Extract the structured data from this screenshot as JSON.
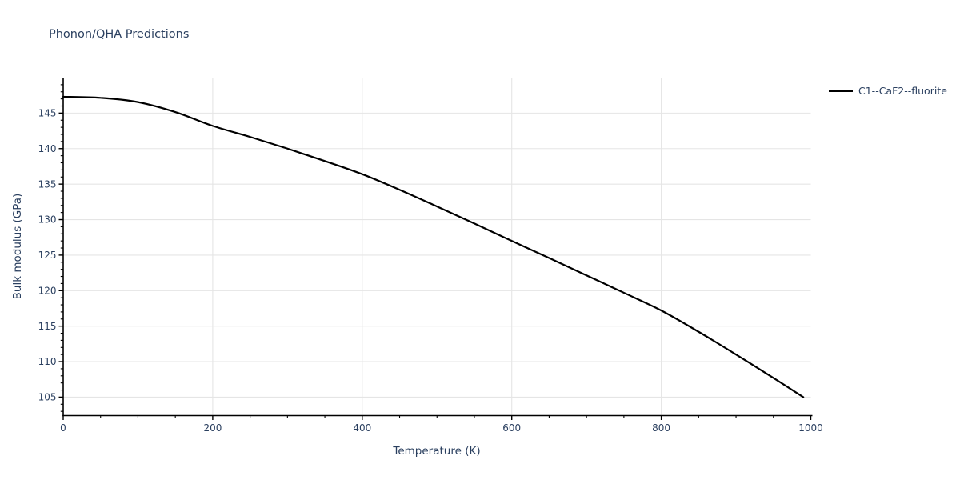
{
  "chart_data": {
    "type": "line",
    "title": "Phonon/QHA Predictions",
    "xlabel": "Temperature (K)",
    "ylabel": "Bulk modulus (GPa)",
    "xlim": [
      0,
      1000
    ],
    "ylim": [
      102.4,
      150
    ],
    "x_major_ticks": [
      0,
      200,
      400,
      600,
      800,
      1000
    ],
    "x_minor_step": 50,
    "y_major_ticks": [
      105,
      110,
      115,
      120,
      125,
      130,
      135,
      140,
      145
    ],
    "y_minor_step": 1,
    "grid": "major-only",
    "legend": {
      "position": "top-right-outside"
    },
    "series": [
      {
        "name": "C1--CaF2--fluorite",
        "color": "#000000",
        "line_width": 2.2,
        "x": [
          0,
          50,
          100,
          150,
          200,
          250,
          300,
          350,
          400,
          450,
          500,
          550,
          600,
          650,
          700,
          750,
          800,
          850,
          900,
          950,
          990
        ],
        "y": [
          147.3,
          147.15,
          146.55,
          145.15,
          143.2,
          141.65,
          140.0,
          138.25,
          136.4,
          134.2,
          131.85,
          129.45,
          127.0,
          124.6,
          122.15,
          119.7,
          117.2,
          114.2,
          111.0,
          107.7,
          105.0
        ]
      }
    ],
    "colors": {
      "text": "#2a3f5f",
      "grid": "#e5e5e5",
      "axis": "#000000",
      "background": "#ffffff"
    }
  }
}
